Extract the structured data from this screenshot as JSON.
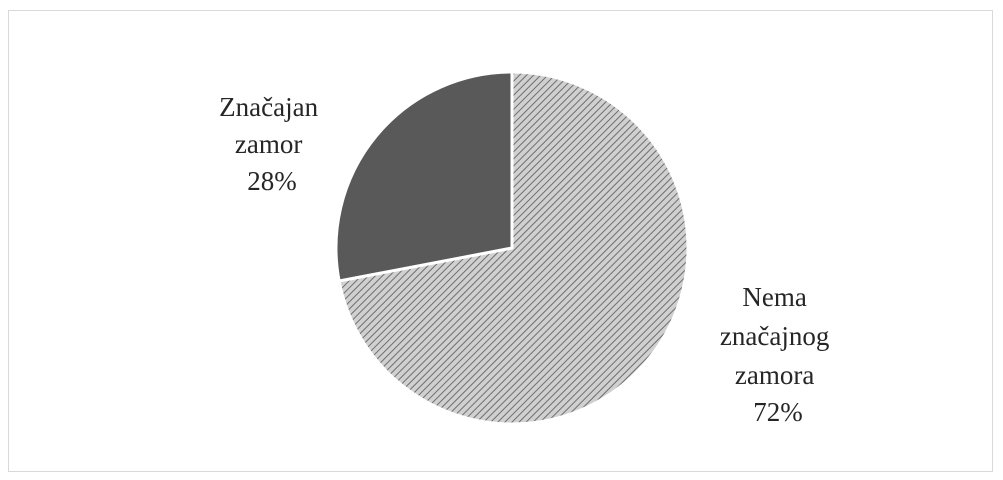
{
  "chart_data": {
    "type": "pie",
    "title": "",
    "slices": [
      {
        "label_lines": [
          "Nema",
          "značajnog",
          "zamora"
        ],
        "value": 72,
        "value_label": "72%",
        "color": "#a6a6a6",
        "pattern": "diagonal-hatch"
      },
      {
        "label_lines": [
          "Značajan",
          "zamor"
        ],
        "value": 28,
        "value_label": "28%",
        "color": "#595959",
        "pattern": "solid"
      }
    ],
    "start_angle_deg": 0,
    "direction": "clockwise",
    "legend": "none",
    "slice_border_color": "#ffffff"
  }
}
